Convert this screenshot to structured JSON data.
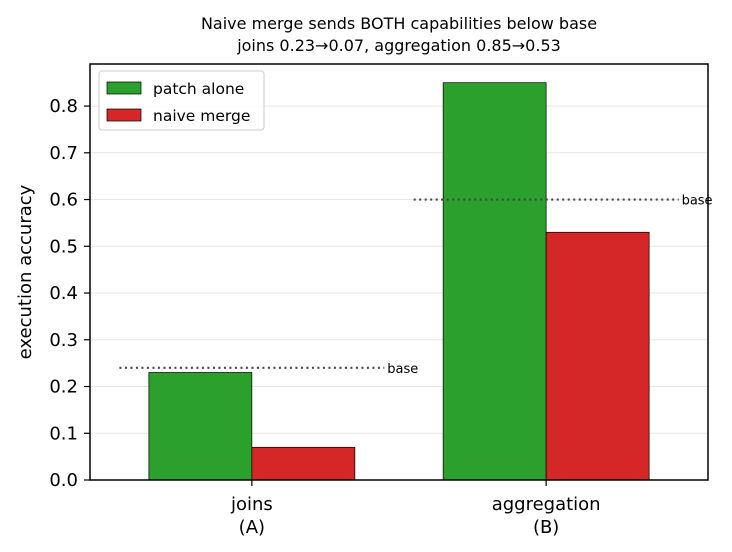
{
  "chart_data": {
    "type": "bar",
    "title": "Naive merge sends BOTH capabilities below base",
    "subtitle": "joins 0.23→0.07, aggregation 0.85→0.53",
    "xlabel": "",
    "ylabel": "execution accuracy",
    "categories": [
      [
        "joins",
        "(A)"
      ],
      [
        "aggregation",
        "(B)"
      ]
    ],
    "series": [
      {
        "name": "patch alone",
        "color": "#2ca02c",
        "values": [
          0.23,
          0.85
        ]
      },
      {
        "name": "naive merge",
        "color": "#d62728",
        "values": [
          0.07,
          0.53
        ]
      }
    ],
    "baselines": [
      {
        "category": 0,
        "value": 0.24,
        "label": "base"
      },
      {
        "category": 1,
        "value": 0.6,
        "label": "base"
      }
    ],
    "ylim": [
      0,
      0.89
    ],
    "yticks": [
      "0.0",
      "0.1",
      "0.2",
      "0.3",
      "0.4",
      "0.5",
      "0.6",
      "0.7",
      "0.8"
    ],
    "grid": "horizontal",
    "legend_position": "top-left"
  }
}
